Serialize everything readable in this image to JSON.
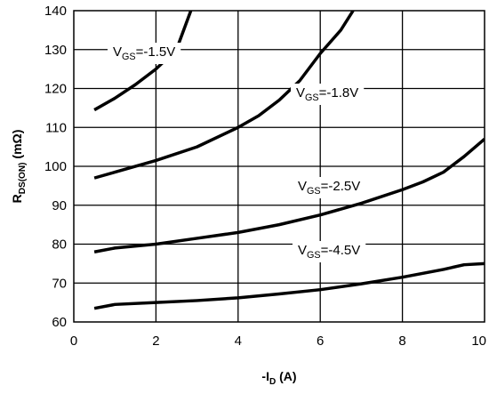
{
  "chart_data": {
    "type": "line",
    "x_label": {
      "main": "-I",
      "sub": "D",
      "rest": " (A)"
    },
    "y_label": {
      "main": "R",
      "sub": "DS(ON)",
      "rest": " (mΩ)"
    },
    "xlim": [
      0,
      10
    ],
    "xticks": [
      0,
      2,
      4,
      6,
      8,
      10
    ],
    "ylim": [
      60,
      140
    ],
    "yticks": [
      60,
      70,
      80,
      90,
      100,
      110,
      120,
      130,
      140
    ],
    "grid": true,
    "series": [
      {
        "name": {
          "main": "V",
          "sub": "GS",
          "rest": "=-1.5V"
        },
        "color": "#000000",
        "x": [
          0.5,
          1,
          1.5,
          2,
          2.5,
          2.85
        ],
        "values": [
          114.5,
          117.5,
          121,
          125,
          130,
          140
        ]
      },
      {
        "name": {
          "main": "V",
          "sub": "GS",
          "rest": "=-1.8V"
        },
        "color": "#000000",
        "x": [
          0.5,
          1,
          2,
          3,
          4,
          4.5,
          5,
          5.5,
          6,
          6.5,
          6.8
        ],
        "values": [
          97,
          98.5,
          101.5,
          105,
          110,
          113,
          117,
          122,
          129,
          135,
          140
        ]
      },
      {
        "name": {
          "main": "V",
          "sub": "GS",
          "rest": "=-2.5V"
        },
        "color": "#000000",
        "x": [
          0.5,
          1,
          2,
          3,
          4,
          5,
          6,
          7,
          8,
          8.5,
          9,
          9.5,
          10
        ],
        "values": [
          78,
          79,
          80,
          81.5,
          83,
          85,
          87.5,
          90.5,
          94,
          96,
          98.5,
          102.5,
          107
        ]
      },
      {
        "name": {
          "main": "V",
          "sub": "GS",
          "rest": "=-4.5V"
        },
        "color": "#000000",
        "x": [
          0.5,
          1,
          2,
          3,
          4,
          5,
          6,
          7,
          8,
          9,
          9.5,
          10
        ],
        "values": [
          63.5,
          64.5,
          65,
          65.5,
          66.2,
          67.2,
          68.3,
          69.8,
          71.5,
          73.5,
          74.7,
          75
        ]
      }
    ]
  }
}
